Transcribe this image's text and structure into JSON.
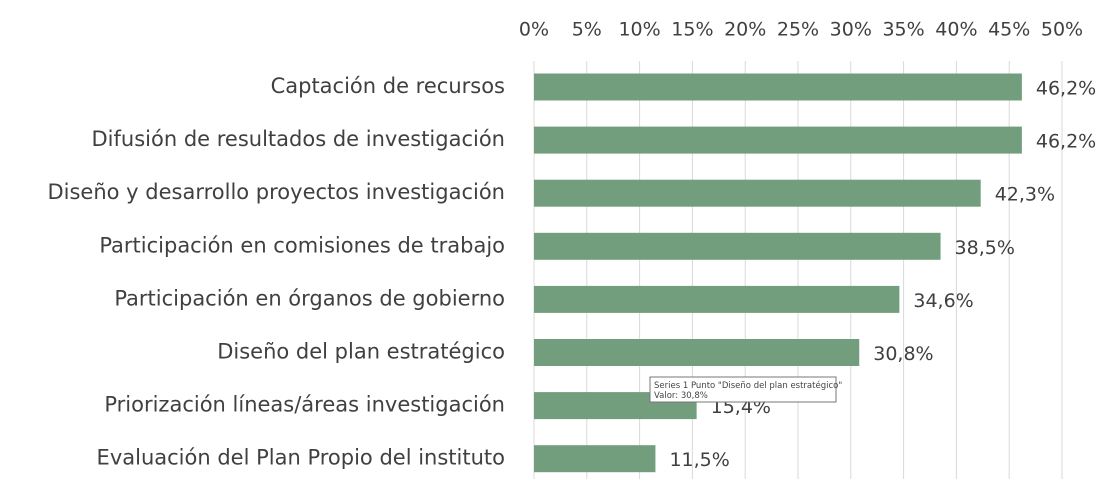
{
  "chart_data": {
    "type": "bar",
    "orientation": "horizontal",
    "categories": [
      "Captación de recursos",
      "Difusión de resultados de investigación",
      "Diseño y desarrollo proyectos investigación",
      "Participación en comisiones de trabajo",
      "Participación en órganos de gobierno",
      "Diseño del plan estratégico",
      "Priorización líneas/áreas investigación",
      "Evaluación del Plan Propio del instituto"
    ],
    "values": [
      46.2,
      46.2,
      42.3,
      38.5,
      34.6,
      30.8,
      15.4,
      11.5
    ],
    "value_labels": [
      "46,2%",
      "46,2%",
      "42,3%",
      "38,5%",
      "34,6%",
      "30,8%",
      "15,4%",
      "11,5%"
    ],
    "color": "#739e7e",
    "xlim": [
      0,
      50
    ],
    "xticks": [
      {
        "value": 0,
        "label": "0%"
      },
      {
        "value": 5,
        "label": "5%"
      },
      {
        "value": 10,
        "label": "10%"
      },
      {
        "value": 15,
        "label": "15%"
      },
      {
        "value": 20,
        "label": "20%"
      },
      {
        "value": 25,
        "label": "25%"
      },
      {
        "value": 30,
        "label": "30%"
      },
      {
        "value": 35,
        "label": "35%"
      },
      {
        "value": 40,
        "label": "40%"
      },
      {
        "value": 45,
        "label": "45%"
      },
      {
        "value": 50,
        "label": "50%"
      }
    ],
    "grid": true,
    "annotations": [
      "Series 1 Punto \"Diseño del plan estratégico\"",
      "Valor: 30,8%"
    ]
  }
}
